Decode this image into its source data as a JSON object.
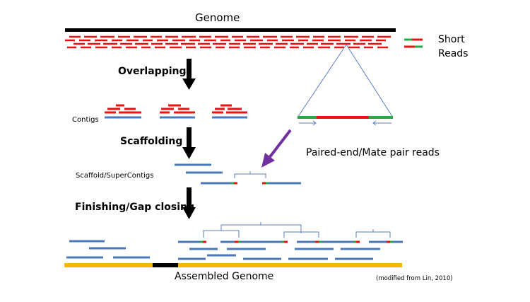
{
  "labels": {
    "genome": "Genome",
    "short_reads_line1": "Short",
    "short_reads_line2": "Reads",
    "overlapping": "Overlapping",
    "contigs": "Contigs",
    "scaffolding": "Scaffolding",
    "paired_end": "Paired-end/Mate pair reads",
    "scaffold_supercontigs": "Scaffold/SuperContigs",
    "finishing": "Finishing/Gap closing",
    "assembled_genome": "Assembled Genome",
    "credit": "(modified from Lin, 2010)"
  },
  "colors": {
    "genome_bar": "#000000",
    "read": "#ee1111",
    "read_end": "#22aa44",
    "contig": "#4a78b8",
    "assembled": "#f5b800",
    "gap": "#000000",
    "purple_arrow": "#7030a0",
    "triangle_line": "#5b7fbf"
  }
}
